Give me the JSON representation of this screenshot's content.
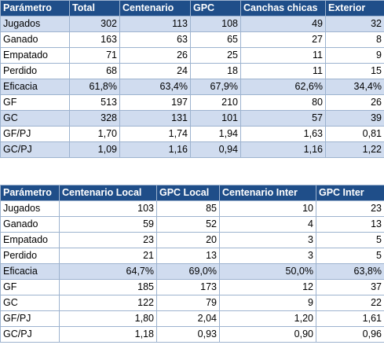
{
  "top_table": {
    "columns": [
      "Parámetro",
      "Total",
      "Centenario",
      "GPC",
      "Canchas chicas",
      "Exterior"
    ],
    "rows": [
      {
        "label": "Jugados",
        "values": [
          "302",
          "113",
          "108",
          "49",
          "32"
        ],
        "band": true
      },
      {
        "label": "Ganado",
        "values": [
          "163",
          "63",
          "65",
          "27",
          "8"
        ],
        "band": false
      },
      {
        "label": "Empatado",
        "values": [
          "71",
          "26",
          "25",
          "11",
          "9"
        ],
        "band": false
      },
      {
        "label": "Perdido",
        "values": [
          "68",
          "24",
          "18",
          "11",
          "15"
        ],
        "band": false
      },
      {
        "label": "Eficacia",
        "values": [
          "61,8%",
          "63,4%",
          "67,9%",
          "62,6%",
          "34,4%"
        ],
        "band": true
      },
      {
        "label": "GF",
        "values": [
          "513",
          "197",
          "210",
          "80",
          "26"
        ],
        "band": false
      },
      {
        "label": "GC",
        "values": [
          "328",
          "131",
          "101",
          "57",
          "39"
        ],
        "band": true
      },
      {
        "label": "GF/PJ",
        "values": [
          "1,70",
          "1,74",
          "1,94",
          "1,63",
          "0,81"
        ],
        "band": false
      },
      {
        "label": "GC/PJ",
        "values": [
          "1,09",
          "1,16",
          "0,94",
          "1,16",
          "1,22"
        ],
        "band": true
      }
    ]
  },
  "bottom_table": {
    "columns": [
      "Parámetro",
      "Centenario Local",
      "GPC Local",
      "Centenario Inter",
      "GPC Inter"
    ],
    "rows": [
      {
        "label": "Jugados",
        "values": [
          "103",
          "85",
          "10",
          "23"
        ],
        "band": false
      },
      {
        "label": "Ganado",
        "values": [
          "59",
          "52",
          "4",
          "13"
        ],
        "band": false
      },
      {
        "label": "Empatado",
        "values": [
          "23",
          "20",
          "3",
          "5"
        ],
        "band": false
      },
      {
        "label": "Perdido",
        "values": [
          "21",
          "13",
          "3",
          "5"
        ],
        "band": false
      },
      {
        "label": "Eficacia",
        "values": [
          "64,7%",
          "69,0%",
          "50,0%",
          "63,8%"
        ],
        "band": true
      },
      {
        "label": "GF",
        "values": [
          "185",
          "173",
          "12",
          "37"
        ],
        "band": false
      },
      {
        "label": "GC",
        "values": [
          "122",
          "79",
          "9",
          "22"
        ],
        "band": false
      },
      {
        "label": "GF/PJ",
        "values": [
          "1,80",
          "2,04",
          "1,20",
          "1,61"
        ],
        "band": false
      },
      {
        "label": "GC/PJ",
        "values": [
          "1,18",
          "0,93",
          "0,90",
          "0,96"
        ],
        "band": false
      }
    ]
  },
  "colors": {
    "header_bg": "#1f4e89",
    "header_text": "#ffffff",
    "band_bg": "#d0dcef",
    "border": "#9db3cf"
  }
}
